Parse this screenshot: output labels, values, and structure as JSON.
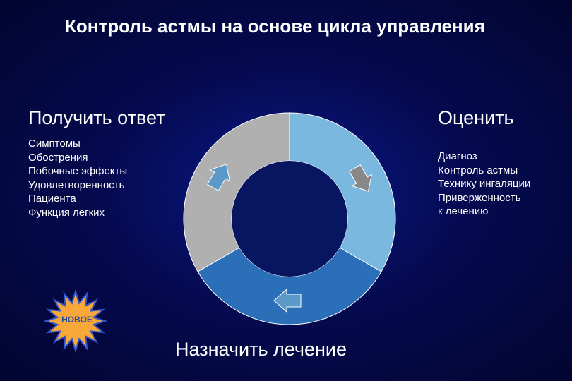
{
  "title": "Контроль астмы на основе цикла\nуправления",
  "left": {
    "heading": "Получить ответ",
    "items": [
      "Симптомы",
      "Обострения",
      "Побочные эффекты",
      "Удовлетворенность",
      "Пациента",
      "Функция легких"
    ]
  },
  "right": {
    "heading": "Оценить",
    "items": [
      "Диагноз",
      "Контроль астмы",
      "Технику ингаляции",
      "Приверженность",
      "к лечению"
    ]
  },
  "bottom": {
    "heading": "Назначить лечение"
  },
  "starburst": {
    "label": "НОВОЕ",
    "fill": "#f7a838",
    "stroke": "#3355cc"
  },
  "donut": {
    "type": "donut-cycle",
    "outer_radius": 150,
    "inner_radius": 82,
    "center_fill": "#081560",
    "segments": [
      {
        "name": "assess",
        "start_deg": -90,
        "end_deg": 30,
        "fill": "#7ab8e0"
      },
      {
        "name": "treat",
        "start_deg": 30,
        "end_deg": 150,
        "fill": "#2a6fb8"
      },
      {
        "name": "response",
        "start_deg": 150,
        "end_deg": 270,
        "fill": "#b0b0b0"
      }
    ],
    "arrows": [
      {
        "angle_deg": -30,
        "fill": "#888888"
      },
      {
        "angle_deg": 90,
        "fill": "#5a99c8"
      },
      {
        "angle_deg": 210,
        "fill": "#5a99c8"
      }
    ],
    "arrow_fill_default": "#888888"
  },
  "colors": {
    "background_center": "#0a1a8a",
    "background_edge": "#020530",
    "text": "#ffffff"
  },
  "fonts": {
    "title_size_pt": 26,
    "heading_size_pt": 27,
    "body_size_pt": 15,
    "star_label_size_pt": 12,
    "family": "Verdana"
  }
}
